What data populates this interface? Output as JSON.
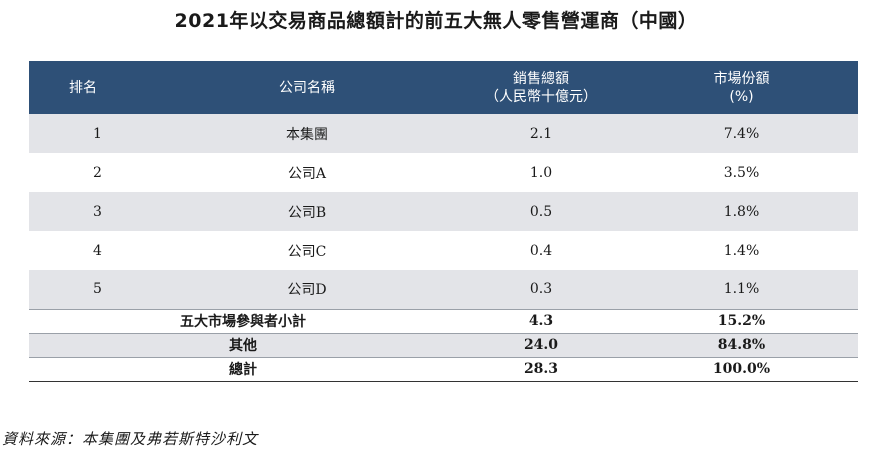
{
  "title": "2021年以交易商品總額計的前五大無人零售營運商（中國）",
  "table": {
    "headers": {
      "rank": "排名",
      "company": "公司名稱",
      "sales_line1": "銷售總額",
      "sales_line2": "（人民幣十億元）",
      "share_line1": "市場份額",
      "share_line2": "(%)"
    },
    "rows": [
      {
        "rank": "1",
        "company": "本集團",
        "sales": "2.1",
        "share": "7.4%"
      },
      {
        "rank": "2",
        "company": "公司A",
        "sales": "1.0",
        "share": "3.5%"
      },
      {
        "rank": "3",
        "company": "公司B",
        "sales": "0.5",
        "share": "1.8%"
      },
      {
        "rank": "4",
        "company": "公司C",
        "sales": "0.4",
        "share": "1.4%"
      },
      {
        "rank": "5",
        "company": "公司D",
        "sales": "0.3",
        "share": "1.1%"
      }
    ],
    "summary": [
      {
        "label": "五大市場參與者小計",
        "sales": "4.3",
        "share": "15.2%"
      },
      {
        "label": "其他",
        "sales": "24.0",
        "share": "84.8%"
      },
      {
        "label": "總計",
        "sales": "28.3",
        "share": "100.0%"
      }
    ]
  },
  "source": "資料來源：本集團及弗若斯特沙利文",
  "colors": {
    "header_bg": "#2e5077",
    "row_shade": "#e3e4e8"
  }
}
